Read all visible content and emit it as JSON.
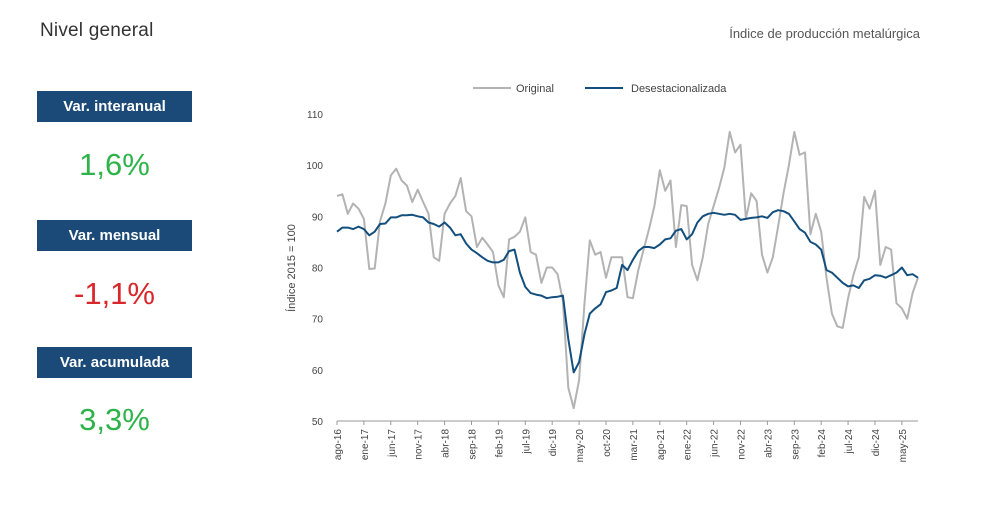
{
  "header": {
    "title": "Nivel general",
    "subtitle": "Índice de producción metalúrgica"
  },
  "kpis": [
    {
      "label": "Var. interanual",
      "value": "1,6%",
      "color": "#2db34a"
    },
    {
      "label": "Var. mensual",
      "value": "-1,1%",
      "color": "#d9262b"
    },
    {
      "label": "Var. acumulada",
      "value": "3,3%",
      "color": "#2db34a"
    }
  ],
  "chart_data": {
    "type": "line",
    "ylabel": "Índice 2015 = 100",
    "ylim": [
      50,
      110
    ],
    "yticks": [
      50,
      60,
      70,
      80,
      90,
      100,
      110
    ],
    "x_start": "ago-16",
    "x_tick_labels": [
      "ago-16",
      "ene-17",
      "jun-17",
      "nov-17",
      "abr-18",
      "sep-18",
      "feb-19",
      "jul-19",
      "dic-19",
      "may-20",
      "oct-20",
      "mar-21",
      "ago-21",
      "ene-22",
      "jun-22",
      "nov-22",
      "abr-23",
      "sep-23",
      "feb-24",
      "jul-24",
      "dic-24",
      "may-25"
    ],
    "legend_position": "top",
    "series": [
      {
        "name": "Original",
        "color": "#b3b3b3",
        "values": [
          94,
          94.3,
          90.5,
          92.5,
          91.5,
          89.5,
          79.7,
          79.8,
          89,
          92.5,
          98,
          99.3,
          97,
          96,
          92.8,
          95.2,
          92.8,
          90.5,
          82,
          81.3,
          90.5,
          92.5,
          94,
          97.5,
          91,
          90,
          84,
          85.8,
          84.5,
          83,
          76.5,
          74.2,
          85.5,
          86,
          87,
          89.8,
          83,
          82.5,
          77,
          80,
          80,
          78.7,
          73.5,
          56.5,
          52.5,
          58,
          73,
          85.3,
          82.5,
          83,
          78,
          82,
          82,
          82,
          74.2,
          74,
          79.5,
          83.5,
          87.5,
          92,
          99,
          95,
          97,
          84,
          92.2,
          92,
          80.5,
          77.5,
          82,
          88.5,
          92,
          95.5,
          99.5,
          106.5,
          102.5,
          104,
          89.5,
          94.5,
          93,
          82.5,
          79,
          82,
          88,
          94.5,
          100,
          106.5,
          102,
          102.5,
          86.5,
          90.5,
          87,
          78,
          71,
          68.5,
          68.2,
          74,
          78.5,
          82,
          93.8,
          91.5,
          95,
          80.5,
          84,
          83.5,
          73,
          72,
          70,
          75,
          78
        ]
      },
      {
        "name": "Desestacionalizada",
        "color": "#134f7e",
        "values": [
          87,
          87.8,
          87.8,
          87.5,
          88,
          87.5,
          86.3,
          87,
          88.5,
          88.6,
          89.8,
          89.8,
          90.2,
          90.2,
          90.3,
          90,
          89.8,
          88.8,
          88.5,
          88,
          88.8,
          87.8,
          86.3,
          86.5,
          84.7,
          83.5,
          82.8,
          82,
          81.3,
          81,
          81,
          81.5,
          83.2,
          83.5,
          79,
          76.2,
          75,
          74.7,
          74.5,
          74,
          74.2,
          74.3,
          74.5,
          66,
          59.5,
          61.5,
          67,
          71,
          72,
          72.8,
          75.2,
          75.5,
          76,
          80.5,
          79.5,
          81.5,
          83.2,
          84,
          84,
          83.8,
          84.5,
          85.5,
          85.7,
          87.2,
          87.5,
          85.5,
          86.5,
          88.8,
          90,
          90.5,
          90.7,
          90.5,
          90.3,
          90.5,
          90.3,
          89.3,
          89.5,
          89.7,
          89.8,
          90,
          89.7,
          90.8,
          91.2,
          91,
          90.5,
          89,
          87.5,
          86.8,
          85,
          84.5,
          83.5,
          79.5,
          79,
          78,
          77,
          76.3,
          76.5,
          76,
          77.5,
          77.8,
          78.5,
          78.4,
          78,
          78.5,
          79,
          80,
          78.5,
          78.7,
          78
        ]
      }
    ]
  }
}
